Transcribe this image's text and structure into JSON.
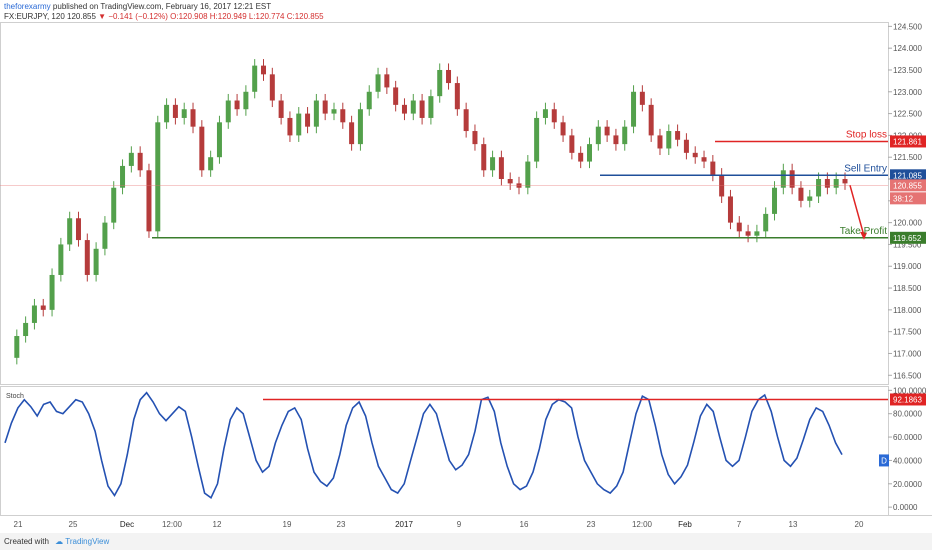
{
  "header": {
    "author": "theforexarmy",
    "published": "published on TradingView.com, February 16, 2017 12:21 EST",
    "symbol": "FX:EURJPY, 120",
    "last": "120.855",
    "change": "▼ −0.141 (−0.12%)",
    "ohlc": "O:120.908 H:120.949 L:120.774 C:120.855"
  },
  "footer": {
    "created_with": "Created with",
    "brand": "TradingView"
  },
  "chart_data": [
    {
      "type": "line",
      "panel": "price",
      "ylim": [
        116.3,
        124.6
      ],
      "price_ticks": [
        "124.500",
        "124.000",
        "123.500",
        "123.000",
        "122.500",
        "122.000",
        "121.500",
        "121.000",
        "120.500",
        "120.000",
        "119.500",
        "119.000",
        "118.500",
        "118.000",
        "117.500",
        "117.000",
        "116.500"
      ],
      "time_ticks": [
        "21",
        "25",
        "Dec",
        "12:00",
        "12",
        "19",
        "23",
        "2017",
        "9",
        "16",
        "23",
        "12:00",
        "Feb",
        "7",
        "13",
        "20"
      ],
      "series": [
        {
          "values": [
            116.9,
            117.4,
            117.7,
            118.1,
            118.0,
            118.8,
            119.5,
            120.1,
            119.6,
            118.8,
            119.4,
            120.0,
            120.8,
            121.3,
            121.6,
            121.2,
            119.8,
            122.3,
            122.7,
            122.4,
            122.6,
            122.2,
            121.2,
            121.5,
            122.3,
            122.8,
            122.6,
            123.0,
            123.6,
            123.4,
            122.8,
            122.4,
            122.0,
            122.5,
            122.2,
            122.8,
            122.5,
            122.6,
            122.3,
            121.8,
            122.6,
            123.0,
            123.4,
            123.1,
            122.7,
            122.5,
            122.8,
            122.4,
            122.9,
            123.5,
            123.2,
            122.6,
            122.1,
            121.8,
            121.2,
            121.5,
            121.0,
            120.9,
            120.8,
            121.4,
            122.4,
            122.6,
            122.3,
            122.0,
            121.6,
            121.4,
            121.8,
            122.2,
            122.0,
            121.8,
            122.2,
            123.0,
            122.7,
            122.0,
            121.7,
            122.1,
            121.9,
            121.6,
            121.5,
            121.4,
            121.1,
            120.6,
            120.0,
            119.8,
            119.7,
            119.8,
            120.2,
            120.8,
            121.2,
            120.8,
            120.5,
            120.6,
            121.0,
            120.8,
            121.0,
            120.9
          ]
        }
      ],
      "stop_loss_label": "Stop loss",
      "stop_loss_value": "121.861",
      "sell_entry_label": "Sell Entry",
      "sell_entry_value": "121.085",
      "take_profit_label": "Take Profit",
      "take_profit_value": "119.652",
      "current_value": "120.855",
      "countdown": "38:12",
      "colors": {
        "up": "#53a04b",
        "down": "#b53b3b",
        "stop_loss": "#e02424",
        "sell_entry": "#1f4f9a",
        "take_profit": "#3a7d2c",
        "current": "#e57373"
      }
    },
    {
      "type": "line",
      "panel": "oscillator",
      "title": "Stoch",
      "ylim": [
        -5,
        102
      ],
      "y_ticks": [
        "100.0000",
        "80.0000",
        "60.0000",
        "40.0000",
        "20.0000",
        "0.0000"
      ],
      "series": [
        {
          "values": [
            55,
            72,
            85,
            92,
            86,
            78,
            88,
            90,
            82,
            80,
            86,
            92,
            90,
            80,
            65,
            40,
            18,
            10,
            20,
            45,
            75,
            92,
            98,
            90,
            80,
            74,
            80,
            86,
            82,
            60,
            35,
            12,
            8,
            20,
            50,
            75,
            85,
            80,
            60,
            40,
            30,
            35,
            55,
            70,
            82,
            85,
            75,
            50,
            30,
            22,
            18,
            25,
            45,
            70,
            85,
            90,
            78,
            55,
            35,
            25,
            15,
            12,
            20,
            40,
            60,
            80,
            88,
            80,
            60,
            40,
            32,
            36,
            45,
            65,
            92,
            94,
            82,
            55,
            35,
            20,
            15,
            18,
            30,
            50,
            75,
            88,
            92,
            90,
            85,
            60,
            40,
            30,
            20,
            15,
            12,
            18,
            30,
            55,
            80,
            95,
            92,
            70,
            45,
            28,
            20,
            26,
            36,
            56,
            78,
            88,
            82,
            60,
            40,
            35,
            40,
            60,
            82,
            92,
            96,
            82,
            60,
            40,
            35,
            42,
            58,
            75,
            85,
            82,
            70,
            55,
            45
          ]
        }
      ],
      "marker_value": "92.1863",
      "legend_tag": "D",
      "colors": {
        "line": "#2451b2",
        "marker": "#e02424",
        "tag": "#2a6ad6"
      }
    }
  ]
}
